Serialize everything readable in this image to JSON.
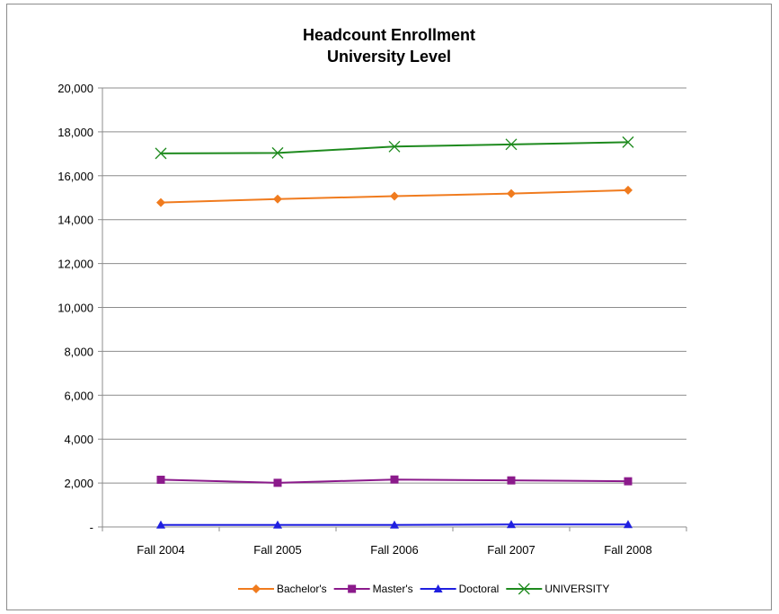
{
  "chart_data": {
    "type": "line",
    "title": "Headcount Enrollment",
    "subtitle": "University Level",
    "xlabel": "",
    "ylabel": "",
    "categories": [
      "Fall 2004",
      "Fall 2005",
      "Fall 2006",
      "Fall 2007",
      "Fall 2008"
    ],
    "ylim": [
      0,
      20000
    ],
    "yticks": [
      0,
      2000,
      4000,
      6000,
      8000,
      10000,
      12000,
      14000,
      16000,
      18000,
      20000
    ],
    "ytick_labels": [
      "-",
      "2,000",
      "4,000",
      "6,000",
      "8,000",
      "10,000",
      "12,000",
      "14,000",
      "16,000",
      "18,000",
      "20,000"
    ],
    "grid": "horizontal",
    "legend_position": "bottom",
    "series": [
      {
        "name": "Bachelor's",
        "color": "#f07b1e",
        "marker": "diamond",
        "values": [
          14780,
          14940,
          15070,
          15190,
          15340
        ]
      },
      {
        "name": "Master's",
        "color": "#8b1a8b",
        "marker": "square",
        "values": [
          2150,
          2010,
          2160,
          2120,
          2080
        ]
      },
      {
        "name": "Doctoral",
        "color": "#1f1fe0",
        "marker": "triangle",
        "values": [
          90,
          90,
          90,
          110,
          110
        ]
      },
      {
        "name": "UNIVERSITY",
        "color": "#1e8a1e",
        "marker": "x",
        "values": [
          17020,
          17040,
          17330,
          17430,
          17530
        ]
      }
    ]
  }
}
